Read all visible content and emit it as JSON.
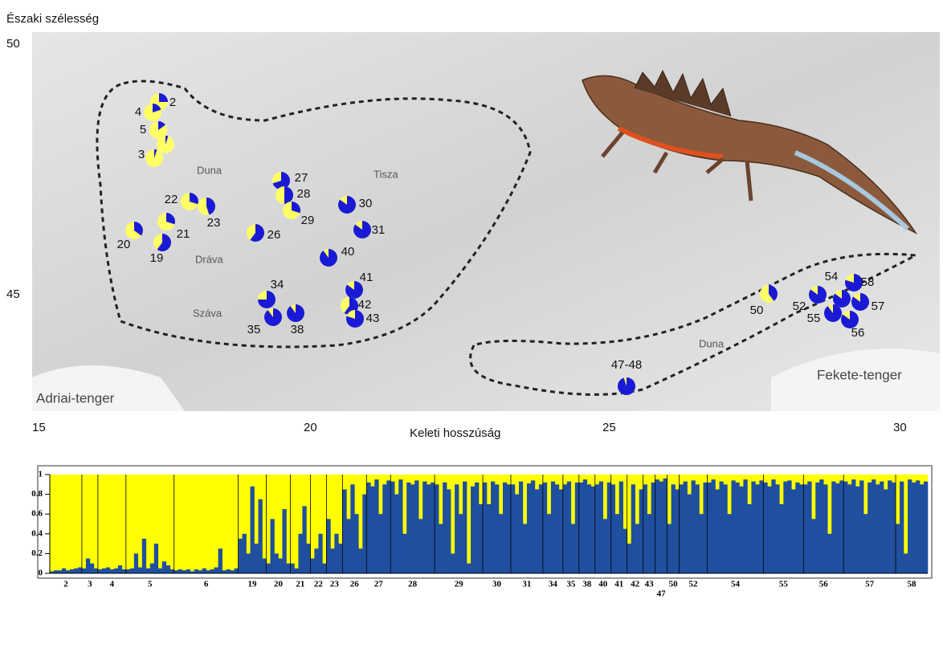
{
  "map": {
    "lat_title": "Északi szélesség",
    "lon_title": "Keleti hosszúság",
    "lat_ticks": [
      50,
      45
    ],
    "lon_ticks": [
      15,
      20,
      25,
      30
    ],
    "places": [
      "Duna",
      "Tisza",
      "Dráva",
      "Száva",
      "Duna",
      "Fekete-tenger",
      "Adriai-tenger"
    ],
    "pies": [
      {
        "label": "2",
        "blue": 0.25
      },
      {
        "label": "4",
        "blue": 0.2
      },
      {
        "label": "5",
        "blue": 0.15
      },
      {
        "label": null,
        "blue": 0.05
      },
      {
        "label": "3",
        "blue": 0.05
      },
      {
        "label": "22",
        "blue": 0.3
      },
      {
        "label": "23",
        "blue": 0.45
      },
      {
        "label": "20",
        "blue": 0.35
      },
      {
        "label": "21",
        "blue": 0.3
      },
      {
        "label": "19",
        "blue": 0.6
      },
      {
        "label": "27",
        "blue": 0.7
      },
      {
        "label": "28",
        "blue": 0.5
      },
      {
        "label": "29",
        "blue": 0.3
      },
      {
        "label": "26",
        "blue": 0.6
      },
      {
        "label": "30",
        "blue": 0.85
      },
      {
        "label": "31",
        "blue": 0.85
      },
      {
        "label": "40",
        "blue": 0.9
      },
      {
        "label": "41",
        "blue": 0.85
      },
      {
        "label": "42",
        "blue": 0.6
      },
      {
        "label": "43",
        "blue": 0.8
      },
      {
        "label": "34",
        "blue": 0.75
      },
      {
        "label": "35",
        "blue": 0.9
      },
      {
        "label": "38",
        "blue": 0.9
      },
      {
        "label": "50",
        "blue": 0.4
      },
      {
        "label": "52",
        "blue": 0.85
      },
      {
        "label": "54",
        "blue": 0.85
      },
      {
        "label": "58",
        "blue": 0.8
      },
      {
        "label": "57",
        "blue": 0.85
      },
      {
        "label": "55",
        "blue": 0.9
      },
      {
        "label": "56",
        "blue": 0.85
      },
      {
        "label": "47-48",
        "blue": 0.95
      }
    ]
  },
  "chart_data": {
    "type": "bar",
    "ylim": [
      0,
      1
    ],
    "yticks": [
      0,
      0.2,
      0.4,
      0.6,
      0.8,
      1
    ],
    "colors": {
      "blue": "#1f4f9e",
      "yellow": "#ffff00"
    },
    "groups": [
      {
        "label": "2",
        "values": [
          0.02,
          0.03,
          0.03,
          0.05,
          0.03,
          0.04,
          0.05,
          0.06
        ]
      },
      {
        "label": "3",
        "values": [
          0.05,
          0.15,
          0.1,
          0.05
        ]
      },
      {
        "label": "4",
        "values": [
          0.04,
          0.05,
          0.06,
          0.04,
          0.05,
          0.08,
          0.04
        ]
      },
      {
        "label": "5",
        "values": [
          0.04,
          0.05,
          0.2,
          0.06,
          0.35,
          0.05,
          0.1,
          0.3,
          0.05,
          0.12,
          0.08,
          0.04
        ]
      },
      {
        "label": "6",
        "values": [
          0.03,
          0.04,
          0.03,
          0.04,
          0.02,
          0.04,
          0.03,
          0.05,
          0.03,
          0.04,
          0.06,
          0.25,
          0.03,
          0.04,
          0.03,
          0.05
        ]
      },
      {
        "label": "19",
        "values": [
          0.35,
          0.4,
          0.2,
          0.88,
          0.3,
          0.75,
          0.15
        ]
      },
      {
        "label": "20",
        "values": [
          0.1,
          0.55,
          0.2,
          0.15,
          0.65,
          0.1
        ]
      },
      {
        "label": "21",
        "values": [
          0.1,
          0.05,
          0.4,
          0.68,
          0.3
        ]
      },
      {
        "label": "22",
        "values": [
          0.15,
          0.25,
          0.4,
          0.1
        ]
      },
      {
        "label": "23",
        "values": [
          0.55,
          0.25,
          0.4,
          0.3
        ]
      },
      {
        "label": "26",
        "values": [
          0.85,
          0.55,
          0.9,
          0.6,
          0.25,
          0.8
        ]
      },
      {
        "label": "27",
        "values": [
          0.92,
          0.88,
          0.95,
          0.6,
          0.9,
          0.94
        ]
      },
      {
        "label": "28",
        "values": [
          0.93,
          0.8,
          0.95,
          0.4,
          0.92,
          0.9,
          0.94,
          0.55,
          0.93,
          0.9,
          0.92
        ]
      },
      {
        "label": "29",
        "values": [
          0.9,
          0.5,
          0.92,
          0.85,
          0.2,
          0.9,
          0.6,
          0.93,
          0.1,
          0.88,
          0.92,
          0.7
        ]
      },
      {
        "label": "30",
        "values": [
          0.92,
          0.7,
          0.93,
          0.9,
          0.6,
          0.92,
          0.9
        ]
      },
      {
        "label": "31",
        "values": [
          0.9,
          0.8,
          0.93,
          0.5,
          0.91,
          0.94,
          0.85,
          0.9
        ]
      },
      {
        "label": "34",
        "values": [
          0.92,
          0.6,
          0.93,
          0.9,
          0.85
        ]
      },
      {
        "label": "35",
        "values": [
          0.9,
          0.93,
          0.5,
          0.92
        ]
      },
      {
        "label": "38",
        "values": [
          0.92,
          0.95,
          0.9,
          0.88
        ]
      },
      {
        "label": "40",
        "values": [
          0.9,
          0.93,
          0.55,
          0.92
        ]
      },
      {
        "label": "41",
        "values": [
          0.9,
          0.6,
          0.93,
          0.45
        ]
      },
      {
        "label": "42",
        "values": [
          0.3,
          0.9,
          0.5,
          0.85
        ]
      },
      {
        "label": "43",
        "values": [
          0.9,
          0.6,
          0.92
        ]
      },
      {
        "label": "47",
        "values": [
          0.95,
          0.93,
          0.96
        ]
      },
      {
        "label": "50",
        "values": [
          0.5,
          0.9,
          0.85
        ]
      },
      {
        "label": "52",
        "values": [
          0.9,
          0.93,
          0.8,
          0.94,
          0.9,
          0.6,
          0.92
        ]
      },
      {
        "label": "54",
        "values": [
          0.92,
          0.95,
          0.85,
          0.93,
          0.9,
          0.6,
          0.94,
          0.92,
          0.88,
          0.95,
          0.7,
          0.93,
          0.9,
          0.94
        ]
      },
      {
        "label": "55",
        "values": [
          0.92,
          0.88,
          0.95,
          0.9,
          0.7,
          0.93,
          0.94,
          0.85,
          0.92,
          0.9
        ]
      },
      {
        "label": "56",
        "values": [
          0.9,
          0.93,
          0.55,
          0.92,
          0.95,
          0.9,
          0.4,
          0.93,
          0.91,
          0.94
        ]
      },
      {
        "label": "57",
        "values": [
          0.93,
          0.9,
          0.95,
          0.88,
          0.94,
          0.6,
          0.92,
          0.95,
          0.9,
          0.93,
          0.85,
          0.94,
          0.92
        ]
      },
      {
        "label": "58",
        "values": [
          0.5,
          0.93,
          0.2,
          0.95,
          0.92,
          0.94,
          0.9,
          0.93
        ]
      }
    ]
  }
}
